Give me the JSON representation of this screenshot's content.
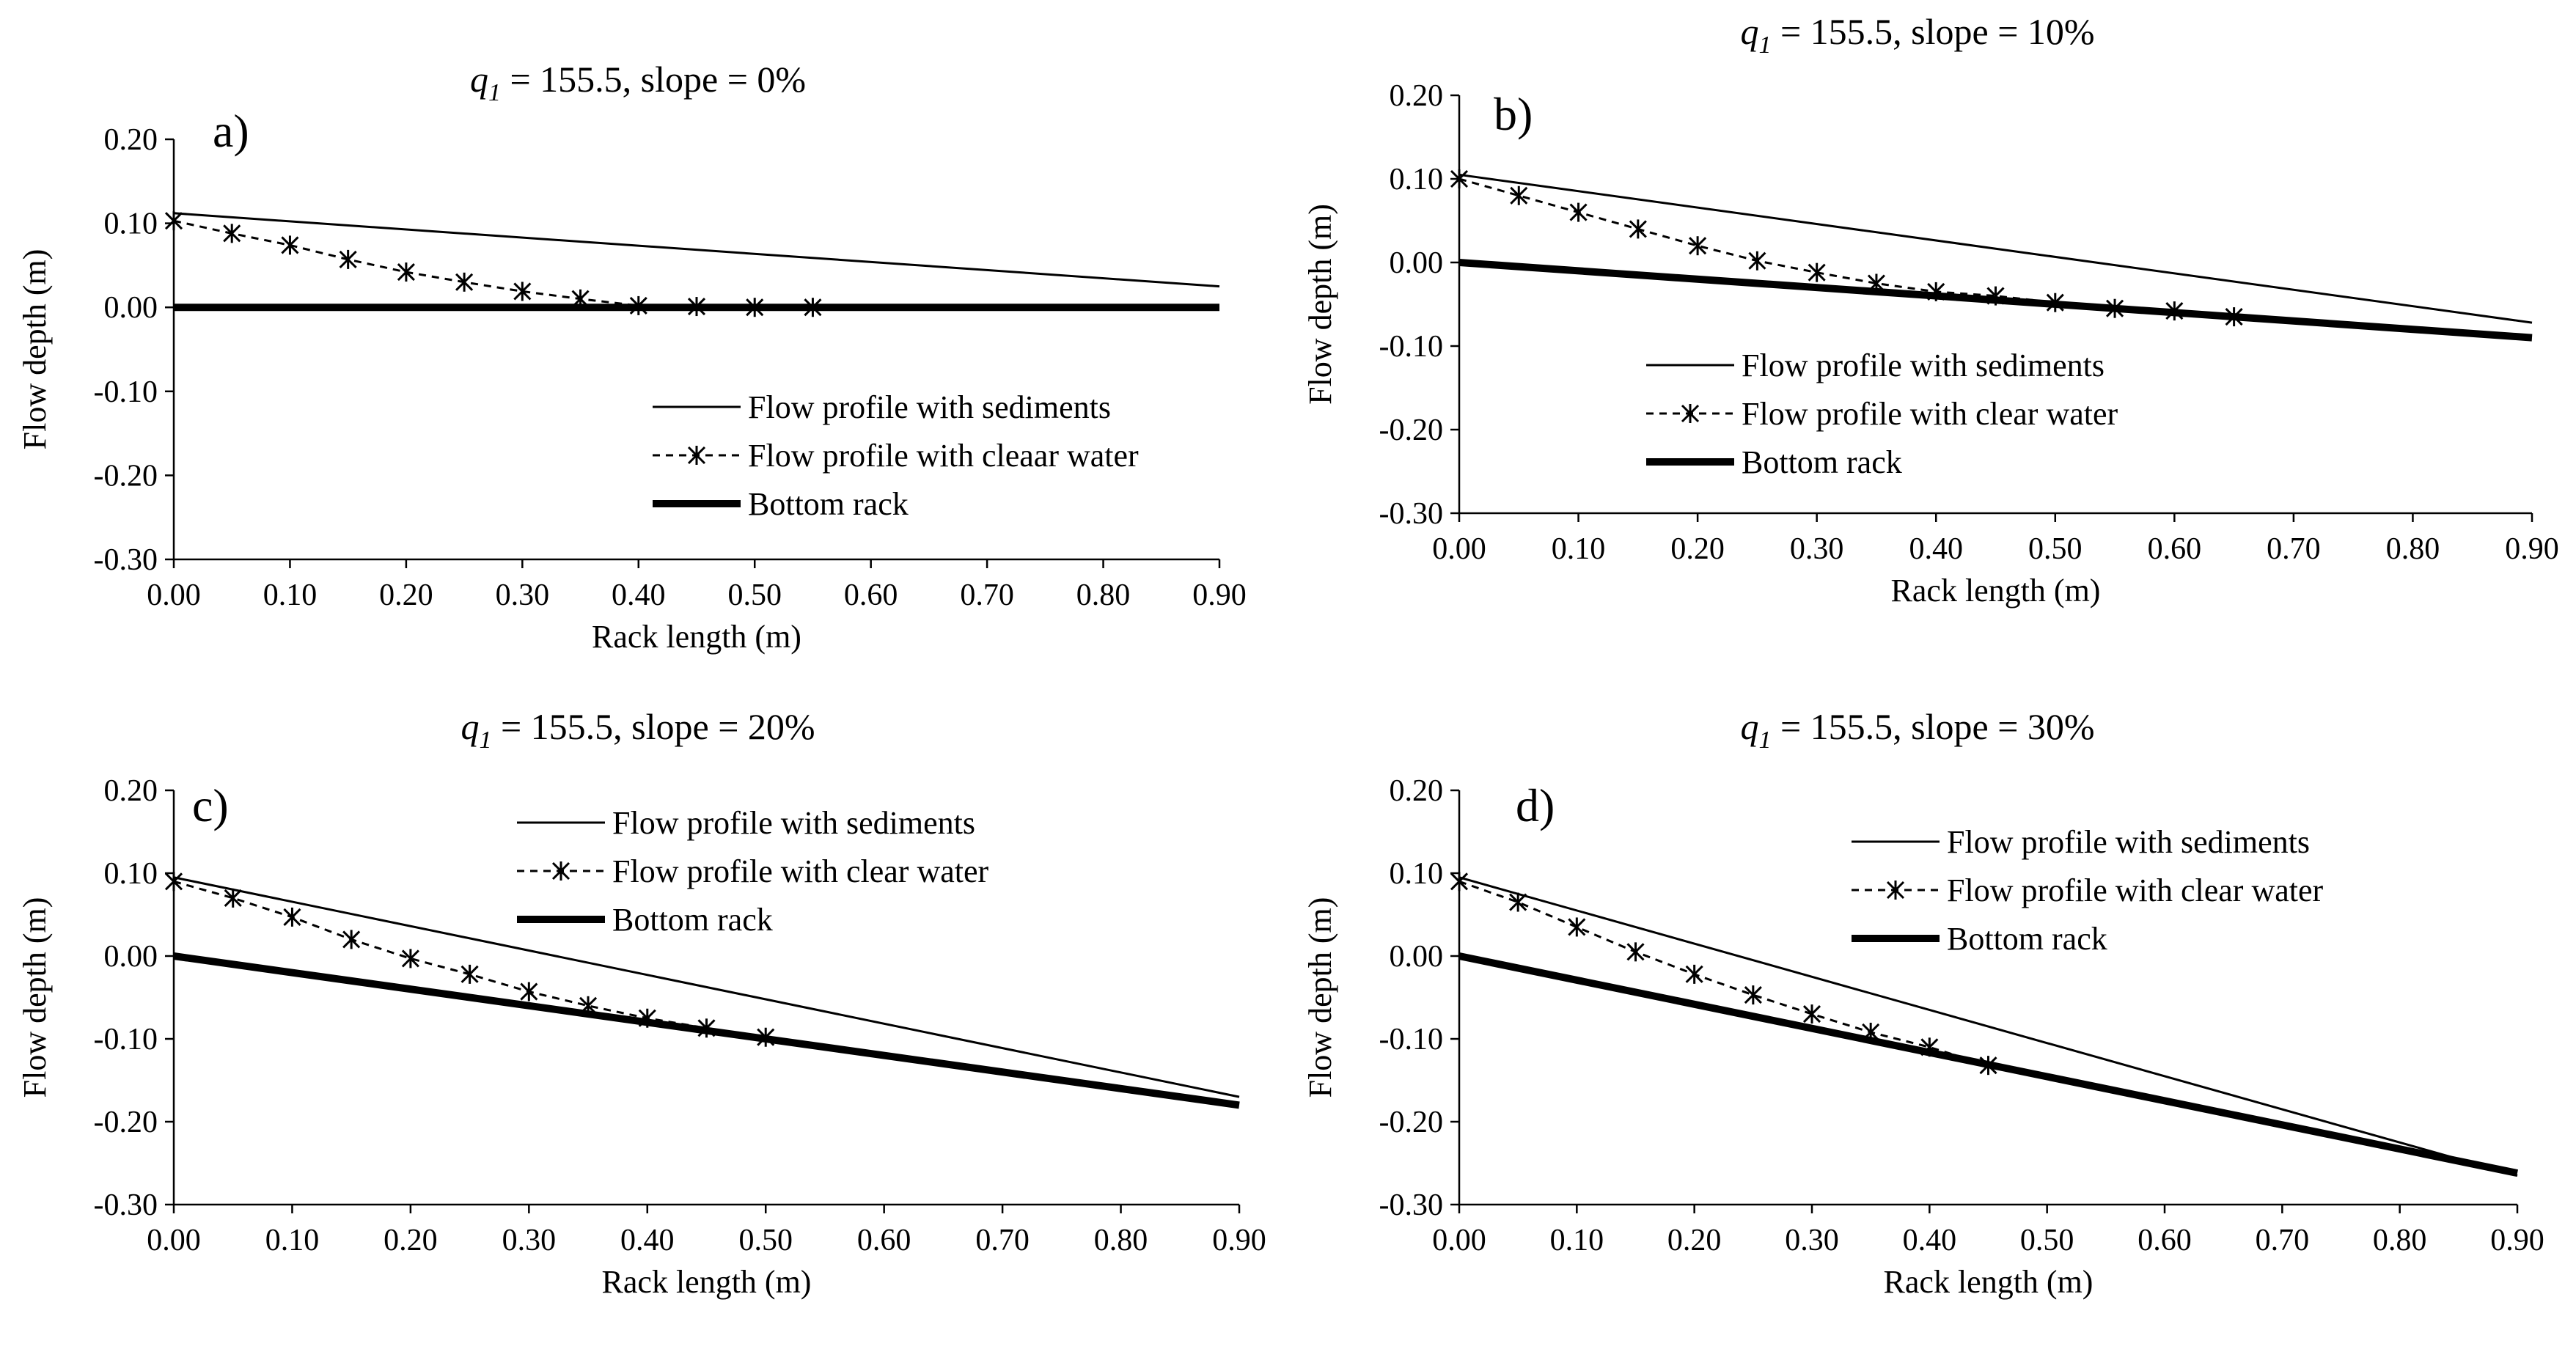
{
  "chart_data": [
    {
      "type": "line",
      "panel_label": "a)",
      "title_q": "q",
      "title_sub": "1",
      "title_rest": " = 155.5,  slope = 0%",
      "xlabel": "Rack length  (m)",
      "ylabel": "Flow depth (m)",
      "xlim": [
        0,
        0.9
      ],
      "ylim": [
        -0.3,
        0.2
      ],
      "x_ticks": [
        0,
        0.1,
        0.2,
        0.3,
        0.4,
        0.5,
        0.6,
        0.7,
        0.8,
        0.9
      ],
      "x_tick_labels": [
        "0.00",
        "0.10",
        "0.20",
        "0.30",
        "0.40",
        "0.50",
        "0.60",
        "0.70",
        "0.80",
        "0.90"
      ],
      "y_ticks": [
        0.2,
        0.1,
        0,
        -0.1,
        -0.2,
        -0.3
      ],
      "y_tick_labels": [
        "0.20",
        "0.10",
        "0.00",
        "-0.10",
        "-0.20",
        "-0.30"
      ],
      "legend_position": "bottom-right",
      "series": [
        {
          "name": "Flow profile with sediments",
          "style": "thin-solid",
          "x": [
            0,
            0.9
          ],
          "y": [
            0.112,
            0.025
          ]
        },
        {
          "name": "Flow profile with cleaar water",
          "style": "dashed-star",
          "x": [
            0,
            0.05,
            0.1,
            0.15,
            0.2,
            0.25,
            0.3,
            0.35,
            0.4,
            0.45,
            0.5,
            0.55
          ],
          "y": [
            0.103,
            0.088,
            0.074,
            0.057,
            0.042,
            0.03,
            0.019,
            0.01,
            0.002,
            0.001,
            0,
            0
          ]
        },
        {
          "name": "Bottom rack",
          "style": "thick-solid",
          "x": [
            0,
            0.9
          ],
          "y": [
            0,
            0
          ]
        }
      ]
    },
    {
      "type": "line",
      "panel_label": "b)",
      "title_q": "q",
      "title_sub": "1",
      "title_rest": " = 155.5,  slope = 10%",
      "xlabel": "Rack length  (m)",
      "ylabel": "Flow depth (m)",
      "xlim": [
        0,
        0.9
      ],
      "ylim": [
        -0.3,
        0.2
      ],
      "x_ticks": [
        0,
        0.1,
        0.2,
        0.3,
        0.4,
        0.5,
        0.6,
        0.7,
        0.8,
        0.9
      ],
      "x_tick_labels": [
        "0.00",
        "0.10",
        "0.20",
        "0.30",
        "0.40",
        "0.50",
        "0.60",
        "0.70",
        "0.80",
        "0.90"
      ],
      "y_ticks": [
        0.2,
        0.1,
        0,
        -0.1,
        -0.2,
        -0.3
      ],
      "y_tick_labels": [
        "0.20",
        "0.10",
        "0.00",
        "-0.10",
        "-0.20",
        "-0.30"
      ],
      "legend_position": "bottom-center",
      "series": [
        {
          "name": "Flow profile with sediments",
          "style": "thin-solid",
          "x": [
            0,
            0.9
          ],
          "y": [
            0.105,
            -0.072
          ]
        },
        {
          "name": "Flow profile with clear water",
          "style": "dashed-star",
          "x": [
            0,
            0.05,
            0.1,
            0.15,
            0.2,
            0.25,
            0.3,
            0.35,
            0.4,
            0.45,
            0.5,
            0.55,
            0.6,
            0.65
          ],
          "y": [
            0.1,
            0.08,
            0.06,
            0.04,
            0.02,
            0.002,
            -0.012,
            -0.025,
            -0.035,
            -0.04,
            -0.048,
            -0.055,
            -0.058,
            -0.065
          ]
        },
        {
          "name": "Bottom rack",
          "style": "thick-solid",
          "x": [
            0,
            0.9
          ],
          "y": [
            0,
            -0.09
          ]
        }
      ]
    },
    {
      "type": "line",
      "panel_label": "c)",
      "title_q": "q",
      "title_sub": "1",
      "title_rest": " = 155.5,  slope = 20%",
      "xlabel": "Rack length  (m)",
      "ylabel": "Flow depth (m)",
      "xlim": [
        0,
        0.9
      ],
      "ylim": [
        -0.3,
        0.2
      ],
      "x_ticks": [
        0,
        0.1,
        0.2,
        0.3,
        0.4,
        0.5,
        0.6,
        0.7,
        0.8,
        0.9
      ],
      "x_tick_labels": [
        "0.00",
        "0.10",
        "0.20",
        "0.30",
        "0.40",
        "0.50",
        "0.60",
        "0.70",
        "0.80",
        "0.90"
      ],
      "y_ticks": [
        0.2,
        0.1,
        0,
        -0.1,
        -0.2,
        -0.3
      ],
      "y_tick_labels": [
        "0.20",
        "0.10",
        "0.00",
        "-0.10",
        "-0.20",
        "-0.30"
      ],
      "legend_position": "top-center",
      "series": [
        {
          "name": "Flow profile with sediments",
          "style": "thin-solid",
          "x": [
            0,
            0.9
          ],
          "y": [
            0.095,
            -0.17
          ]
        },
        {
          "name": "Flow profile with clear water",
          "style": "dashed-star",
          "x": [
            0,
            0.05,
            0.1,
            0.15,
            0.2,
            0.25,
            0.3,
            0.35,
            0.4,
            0.45,
            0.5
          ],
          "y": [
            0.09,
            0.07,
            0.047,
            0.02,
            -0.003,
            -0.022,
            -0.043,
            -0.06,
            -0.075,
            -0.087,
            -0.098
          ]
        },
        {
          "name": "Bottom rack",
          "style": "thick-solid",
          "x": [
            0,
            0.9
          ],
          "y": [
            0,
            -0.18
          ]
        }
      ]
    },
    {
      "type": "line",
      "panel_label": "d)",
      "title_q": "q",
      "title_sub": "1",
      "title_rest": " = 155.5,  slope = 30%",
      "xlabel": "Rack length  (m)",
      "ylabel": "Flow depth (m)",
      "xlim": [
        0,
        0.9
      ],
      "ylim": [
        -0.3,
        0.2
      ],
      "x_ticks": [
        0,
        0.1,
        0.2,
        0.3,
        0.4,
        0.5,
        0.6,
        0.7,
        0.8,
        0.9
      ],
      "x_tick_labels": [
        "0.00",
        "0.10",
        "0.20",
        "0.30",
        "0.40",
        "0.50",
        "0.60",
        "0.70",
        "0.80",
        "0.90"
      ],
      "y_ticks": [
        0.2,
        0.1,
        0,
        -0.1,
        -0.2,
        -0.3
      ],
      "y_tick_labels": [
        "0.20",
        "0.10",
        "0.00",
        "-0.10",
        "-0.20",
        "-0.30"
      ],
      "legend_position": "top-center",
      "series": [
        {
          "name": "Flow profile with sediments",
          "style": "thin-solid",
          "x": [
            0,
            0.9
          ],
          "y": [
            0.095,
            -0.265
          ]
        },
        {
          "name": "Flow profile with clear water",
          "style": "dashed-star",
          "x": [
            0,
            0.05,
            0.1,
            0.15,
            0.2,
            0.25,
            0.3,
            0.35,
            0.4,
            0.45
          ],
          "y": [
            0.09,
            0.065,
            0.035,
            0.005,
            -0.022,
            -0.047,
            -0.07,
            -0.092,
            -0.11,
            -0.132
          ]
        },
        {
          "name": "Bottom rack",
          "style": "thick-solid",
          "x": [
            0,
            0.9
          ],
          "y": [
            0,
            -0.262
          ]
        }
      ]
    }
  ]
}
